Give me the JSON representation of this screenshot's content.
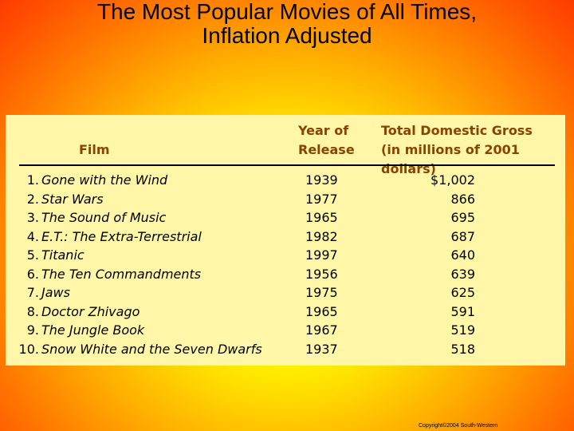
{
  "title": {
    "line1": "The Most Popular Movies of All Times,",
    "line2": "Inflation Adjusted"
  },
  "table": {
    "headers": {
      "film": "Film",
      "year_line1": "Year of",
      "year_line2": "Release",
      "gross_line1": "Total Domestic Gross",
      "gross_line2": "(in millions of 2001 dollars)"
    },
    "rows": [
      {
        "rank": "1.",
        "film": "Gone with the Wind",
        "year": "1939",
        "gross": "$1,002"
      },
      {
        "rank": "2.",
        "film": "Star Wars",
        "year": "1977",
        "gross": "866"
      },
      {
        "rank": "3.",
        "film": "The Sound of Music",
        "year": "1965",
        "gross": "695"
      },
      {
        "rank": "4.",
        "film": "E.T.: The Extra-Terrestrial",
        "year": "1982",
        "gross": "687"
      },
      {
        "rank": "5.",
        "film": "Titanic",
        "year": "1997",
        "gross": "640"
      },
      {
        "rank": "6.",
        "film": "The Ten Commandments",
        "year": "1956",
        "gross": "639"
      },
      {
        "rank": "7.",
        "film": "Jaws",
        "year": "1975",
        "gross": "625"
      },
      {
        "rank": "8.",
        "film": "Doctor Zhivago",
        "year": "1965",
        "gross": "591"
      },
      {
        "rank": "9.",
        "film": "The Jungle Book",
        "year": "1967",
        "gross": "519"
      },
      {
        "rank": "10.",
        "film": "Snow White and the Seven Dwarfs",
        "year": "1937",
        "gross": "518"
      }
    ]
  },
  "copyright": "Copyright©2004 South-Western",
  "colors": {
    "header_text": "#8a4300",
    "table_background": "#fff6a8"
  }
}
